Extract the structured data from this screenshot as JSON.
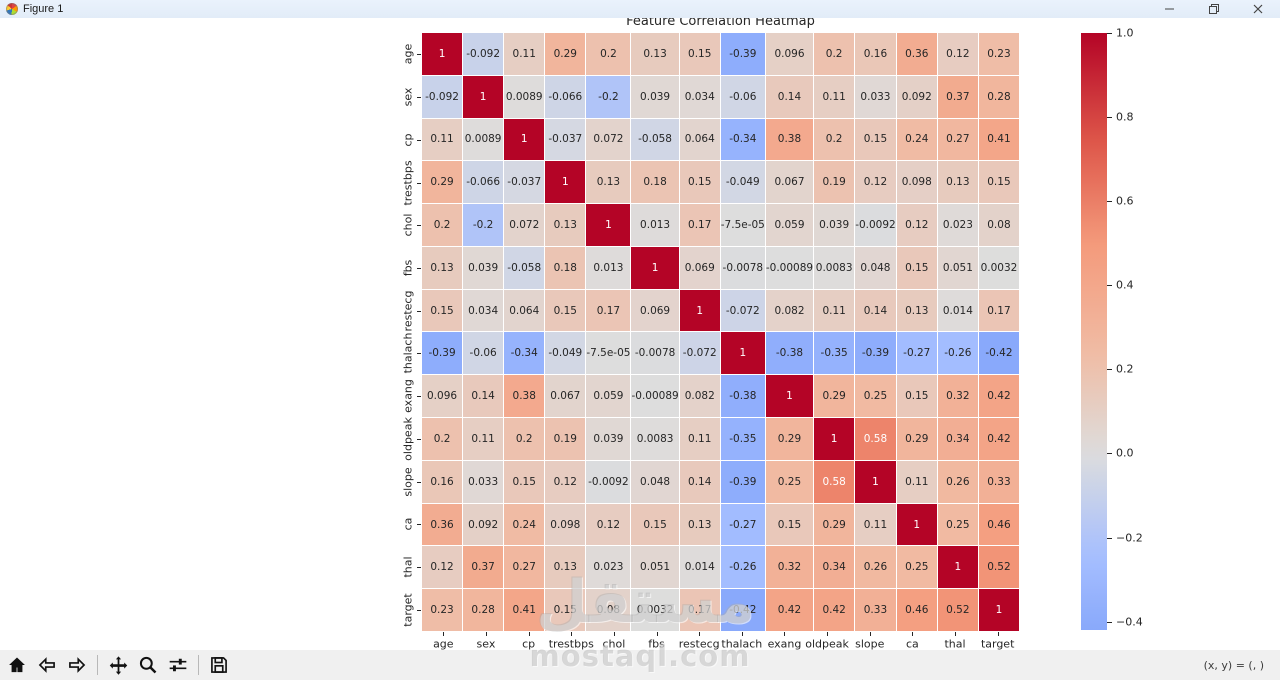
{
  "window": {
    "title": "Figure 1",
    "controls": {
      "minimize": "minimize",
      "restore": "restore",
      "close": "close"
    }
  },
  "chart_data": {
    "type": "heatmap",
    "title": "Feature Correlation Heatmap",
    "labels": [
      "age",
      "sex",
      "cp",
      "trestbps",
      "chol",
      "fbs",
      "restecg",
      "thalach",
      "exang",
      "oldpeak",
      "slope",
      "ca",
      "thal",
      "target"
    ],
    "matrix": [
      [
        "1",
        "-0.092",
        "0.11",
        "0.29",
        "0.2",
        "0.13",
        "0.15",
        "-0.39",
        "0.096",
        "0.2",
        "0.16",
        "0.36",
        "0.12",
        "0.23"
      ],
      [
        "-0.092",
        "1",
        "0.0089",
        "-0.066",
        "-0.2",
        "0.039",
        "0.034",
        "-0.06",
        "0.14",
        "0.11",
        "0.033",
        "0.092",
        "0.37",
        "0.28"
      ],
      [
        "0.11",
        "0.0089",
        "1",
        "-0.037",
        "0.072",
        "-0.058",
        "0.064",
        "-0.34",
        "0.38",
        "0.2",
        "0.15",
        "0.24",
        "0.27",
        "0.41"
      ],
      [
        "0.29",
        "-0.066",
        "-0.037",
        "1",
        "0.13",
        "0.18",
        "0.15",
        "-0.049",
        "0.067",
        "0.19",
        "0.12",
        "0.098",
        "0.13",
        "0.15"
      ],
      [
        "0.2",
        "-0.2",
        "0.072",
        "0.13",
        "1",
        "0.013",
        "0.17",
        "-7.5e-05",
        "0.059",
        "0.039",
        "-0.0092",
        "0.12",
        "0.023",
        "0.08"
      ],
      [
        "0.13",
        "0.039",
        "-0.058",
        "0.18",
        "0.013",
        "1",
        "0.069",
        "-0.0078",
        "-0.00089",
        "0.0083",
        "0.048",
        "0.15",
        "0.051",
        "0.0032"
      ],
      [
        "0.15",
        "0.034",
        "0.064",
        "0.15",
        "0.17",
        "0.069",
        "1",
        "-0.072",
        "0.082",
        "0.11",
        "0.14",
        "0.13",
        "0.014",
        "0.17"
      ],
      [
        "-0.39",
        "-0.06",
        "-0.34",
        "-0.049",
        "-7.5e-05",
        "-0.0078",
        "-0.072",
        "1",
        "-0.38",
        "-0.35",
        "-0.39",
        "-0.27",
        "-0.26",
        "-0.42"
      ],
      [
        "0.096",
        "0.14",
        "0.38",
        "0.067",
        "0.059",
        "-0.00089",
        "0.082",
        "-0.38",
        "1",
        "0.29",
        "0.25",
        "0.15",
        "0.32",
        "0.42"
      ],
      [
        "0.2",
        "0.11",
        "0.2",
        "0.19",
        "0.039",
        "0.0083",
        "0.11",
        "-0.35",
        "0.29",
        "1",
        "0.58",
        "0.29",
        "0.34",
        "0.42"
      ],
      [
        "0.16",
        "0.033",
        "0.15",
        "0.12",
        "-0.0092",
        "0.048",
        "0.14",
        "-0.39",
        "0.25",
        "0.58",
        "1",
        "0.11",
        "0.26",
        "0.33"
      ],
      [
        "0.36",
        "0.092",
        "0.24",
        "0.098",
        "0.12",
        "0.15",
        "0.13",
        "-0.27",
        "0.15",
        "0.29",
        "0.11",
        "1",
        "0.25",
        "0.46"
      ],
      [
        "0.12",
        "0.37",
        "0.27",
        "0.13",
        "0.023",
        "0.051",
        "0.014",
        "-0.26",
        "0.32",
        "0.34",
        "0.26",
        "0.25",
        "1",
        "0.52"
      ],
      [
        "0.23",
        "0.28",
        "0.41",
        "0.15",
        "0.08",
        "0.0032",
        "0.17",
        "-0.42",
        "0.42",
        "0.42",
        "0.33",
        "0.46",
        "0.52",
        "1"
      ]
    ],
    "colormap": "coolwarm",
    "vmin": -1,
    "vmax": 1,
    "colormap_stops": [
      [
        0.0,
        "#3b4cc0"
      ],
      [
        0.125,
        "#5875e2"
      ],
      [
        0.25,
        "#7c9ff9"
      ],
      [
        0.375,
        "#a5beff"
      ],
      [
        0.5,
        "#dddddd"
      ],
      [
        0.625,
        "#f1baa2"
      ],
      [
        0.75,
        "#f49a7b"
      ],
      [
        0.875,
        "#dd5448"
      ],
      [
        1.0,
        "#b40426"
      ]
    ],
    "colorbar": {
      "range": [
        -0.42,
        1.0
      ],
      "ticks": [
        "1.0",
        "0.8",
        "0.6",
        "0.4",
        "0.2",
        "0.0",
        "-0.2",
        "-0.4"
      ],
      "tick_values": [
        1.0,
        0.8,
        0.6,
        0.4,
        0.2,
        0.0,
        -0.2,
        -0.4
      ]
    },
    "annotation_dark_text": "#262626",
    "annotation_light_text": "#ffffff",
    "legend_position": "right-colorbar",
    "grid": false
  },
  "toolbar": {
    "icons": [
      "home-icon",
      "back-icon",
      "forward-icon",
      "pan-icon",
      "zoom-icon",
      "subplots-icon",
      "save-icon"
    ],
    "status": "(x, y) = (, )"
  },
  "watermark": {
    "text_ar": "مستقل",
    "text_en": "mostaql.com"
  }
}
